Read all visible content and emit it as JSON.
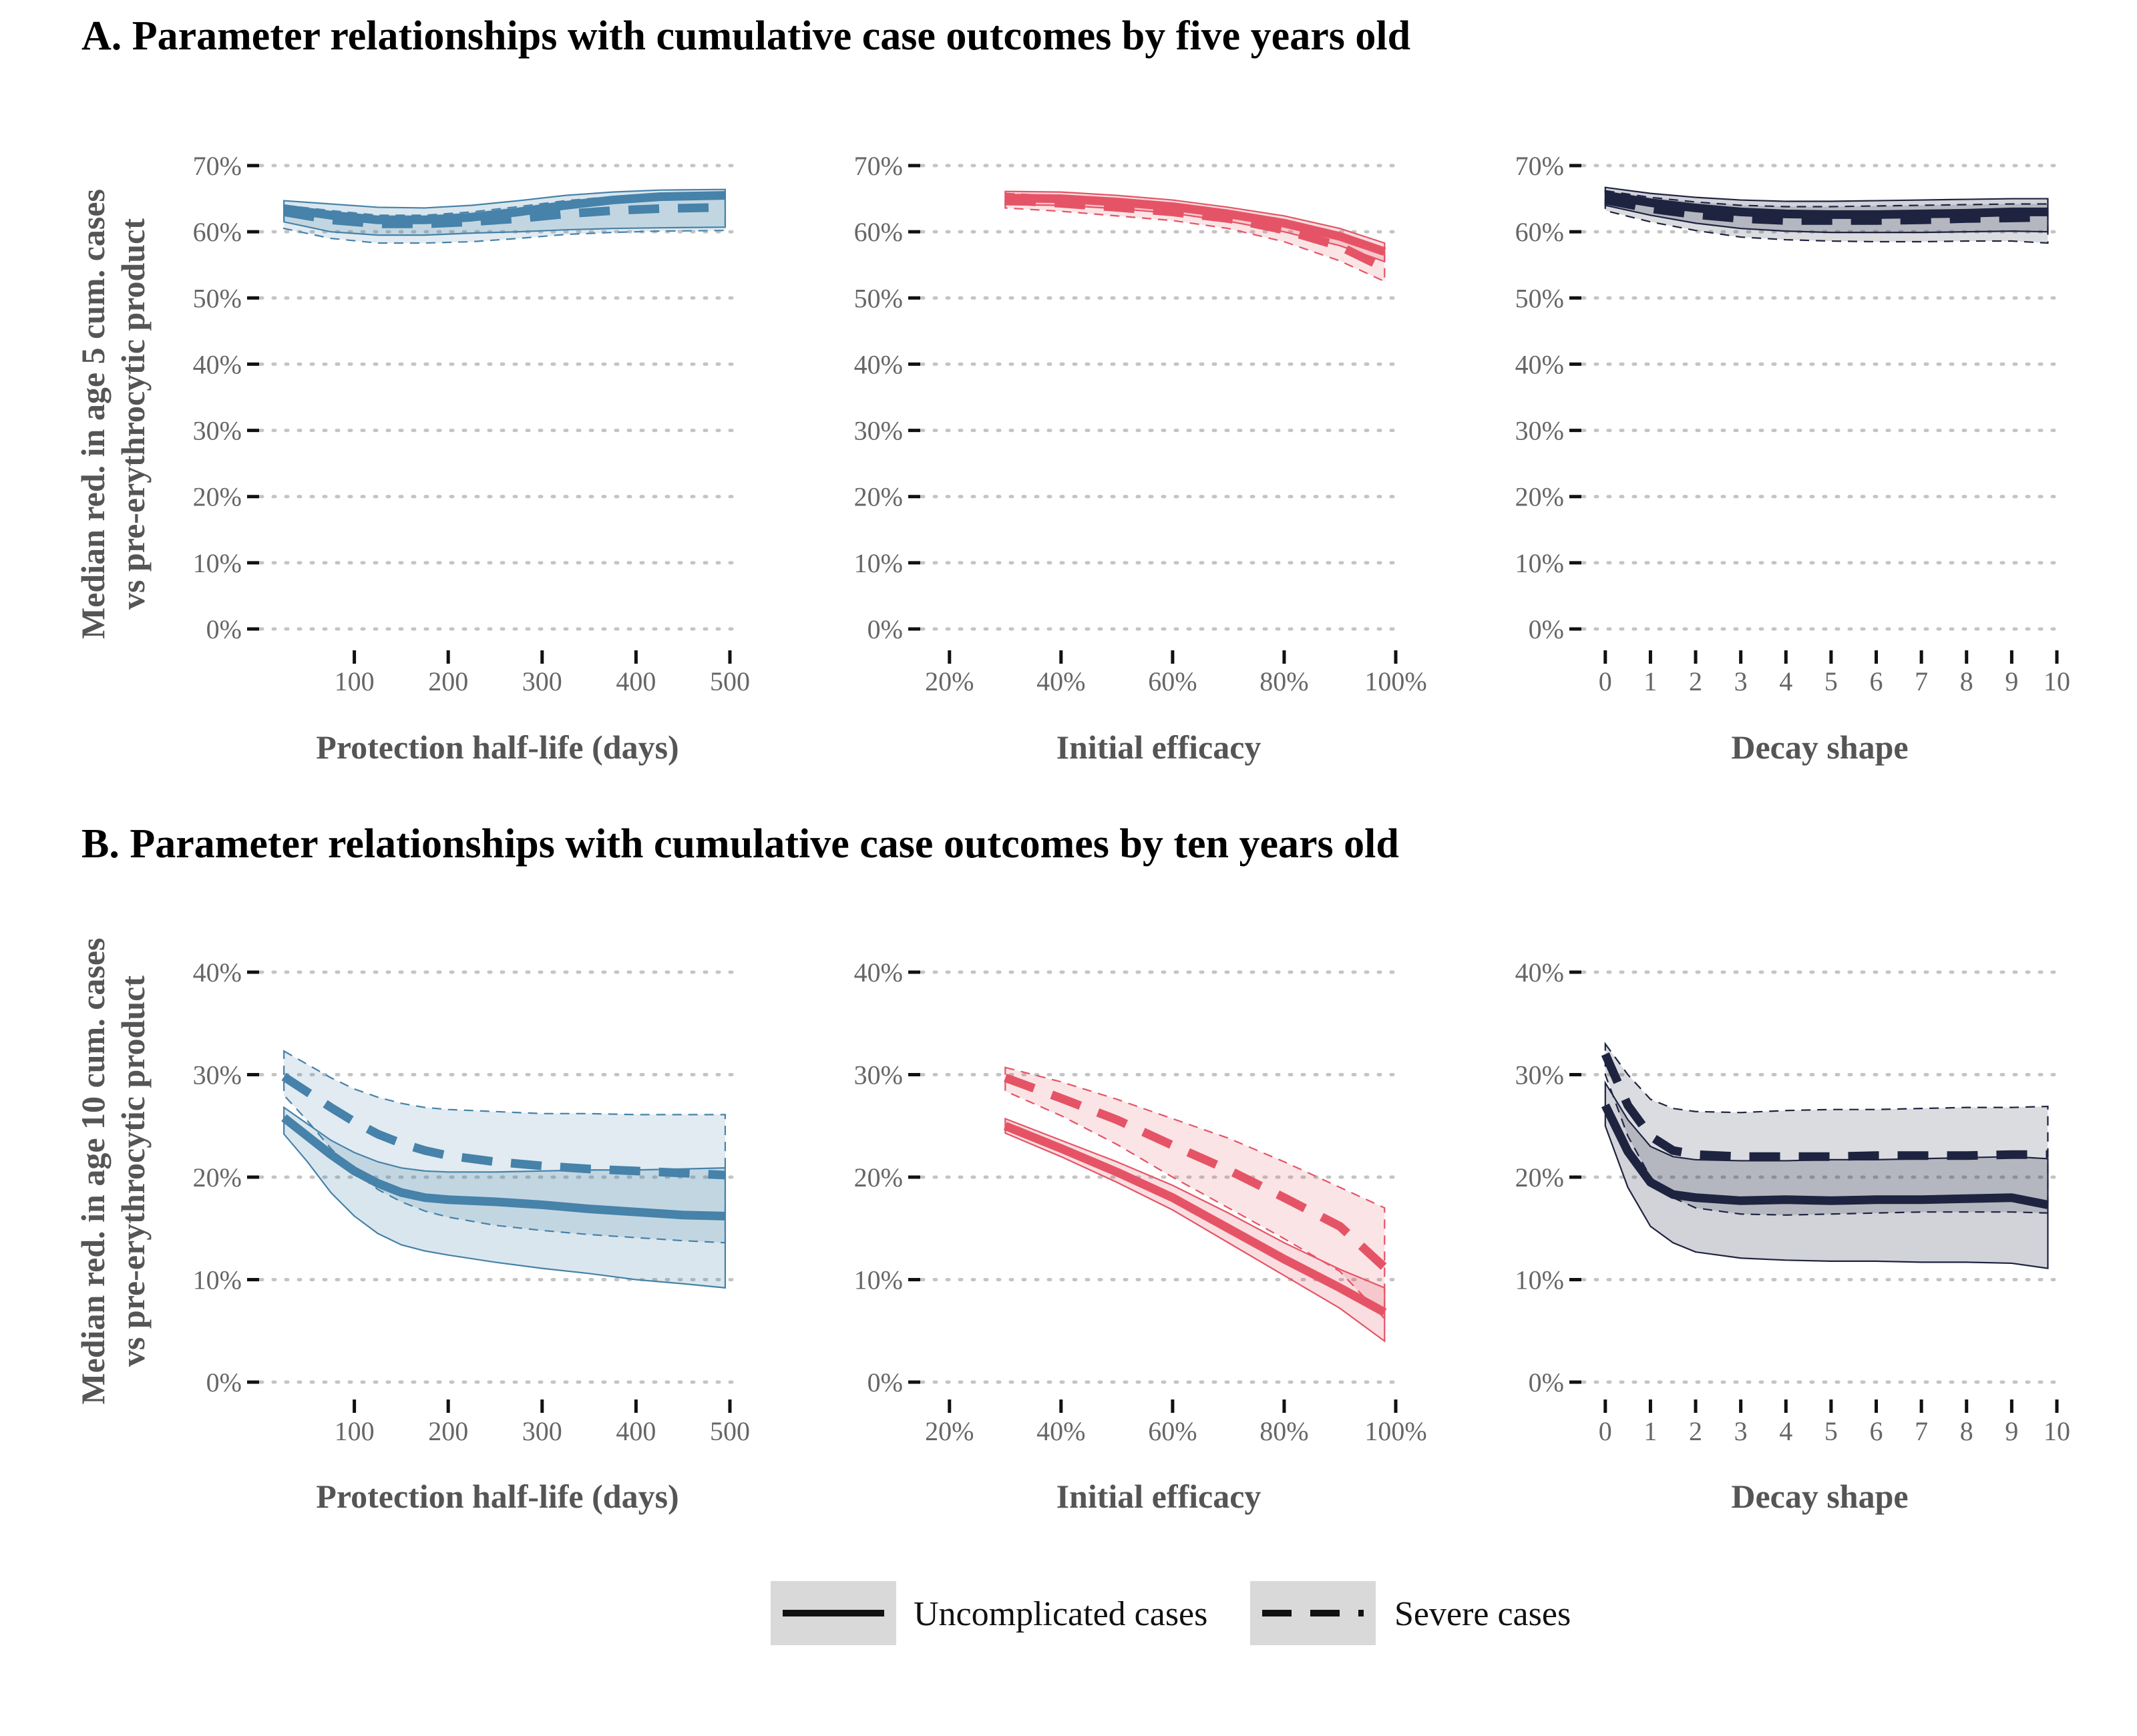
{
  "colors": {
    "blue": "#4682a9",
    "red": "#e55466",
    "navy": "#1e2340"
  },
  "sections": [
    {
      "title": "A. Parameter relationships with cumulative case outcomes by five years old",
      "ylabel_line1": "Median red. in age 5 cum. cases",
      "ylabel_line2": "vs pre-erythrocytic product"
    },
    {
      "title": "B. Parameter relationships with cumulative case outcomes by ten years old",
      "ylabel_line1": "Median red. in age 10 cum. cases",
      "ylabel_line2": "vs pre-erythrocytic product"
    }
  ],
  "legend": {
    "uncomplicated": "Uncomplicated cases",
    "severe": "Severe cases"
  },
  "chart_data": [
    {
      "type": "line",
      "panel": "A1",
      "color": "blue",
      "xlabel": "Protection half-life (days)",
      "xlim": [
        0,
        505
      ],
      "xticks": [
        100,
        200,
        300,
        400,
        500
      ],
      "xtick_labels": [
        "100",
        "200",
        "300",
        "400",
        "500"
      ],
      "ylim": [
        0,
        0.7
      ],
      "yticks": [
        0,
        0.1,
        0.2,
        0.3,
        0.4,
        0.5,
        0.6,
        0.7
      ],
      "ytick_labels": [
        "0%",
        "10%",
        "20%",
        "30%",
        "40%",
        "50%",
        "60%",
        "70%"
      ],
      "series": [
        {
          "name": "Uncomplicated cases",
          "style": "solid",
          "x": [
            25,
            75,
            125,
            175,
            225,
            275,
            325,
            375,
            425,
            495
          ],
          "y": [
            0.635,
            0.625,
            0.618,
            0.618,
            0.622,
            0.63,
            0.64,
            0.648,
            0.653,
            0.655
          ],
          "lower": [
            0.615,
            0.6,
            0.595,
            0.595,
            0.598,
            0.6,
            0.603,
            0.605,
            0.606,
            0.607
          ],
          "upper": [
            0.647,
            0.642,
            0.637,
            0.636,
            0.64,
            0.647,
            0.655,
            0.66,
            0.663,
            0.664
          ]
        },
        {
          "name": "Severe cases",
          "style": "dashed",
          "x": [
            25,
            75,
            125,
            175,
            225,
            275,
            325,
            375,
            425,
            495
          ],
          "y": [
            0.63,
            0.618,
            0.612,
            0.612,
            0.615,
            0.62,
            0.627,
            0.632,
            0.635,
            0.637
          ],
          "lower": [
            0.605,
            0.59,
            0.583,
            0.583,
            0.585,
            0.59,
            0.596,
            0.599,
            0.601,
            0.602
          ],
          "upper": [
            0.64,
            0.632,
            0.625,
            0.625,
            0.63,
            0.638,
            0.647,
            0.653,
            0.656,
            0.657
          ]
        }
      ]
    },
    {
      "type": "line",
      "panel": "A2",
      "color": "red",
      "xlabel": "Initial efficacy",
      "xlim": [
        0.15,
        1.0
      ],
      "xticks": [
        0.2,
        0.4,
        0.6,
        0.8,
        1.0
      ],
      "xtick_labels": [
        "20%",
        "40%",
        "60%",
        "80%",
        "100%"
      ],
      "ylim": [
        0,
        0.7
      ],
      "yticks": [
        0,
        0.1,
        0.2,
        0.3,
        0.4,
        0.5,
        0.6,
        0.7
      ],
      "ytick_labels": [
        "0%",
        "10%",
        "20%",
        "30%",
        "40%",
        "50%",
        "60%",
        "70%"
      ],
      "series": [
        {
          "name": "Uncomplicated cases",
          "style": "solid",
          "x": [
            0.3,
            0.4,
            0.5,
            0.6,
            0.7,
            0.8,
            0.9,
            0.98
          ],
          "y": [
            0.651,
            0.65,
            0.645,
            0.638,
            0.627,
            0.613,
            0.593,
            0.57
          ],
          "lower": [
            0.641,
            0.64,
            0.635,
            0.628,
            0.616,
            0.6,
            0.579,
            0.555
          ],
          "upper": [
            0.661,
            0.66,
            0.655,
            0.648,
            0.637,
            0.624,
            0.605,
            0.583
          ]
        },
        {
          "name": "Severe cases",
          "style": "dashed",
          "x": [
            0.3,
            0.4,
            0.5,
            0.6,
            0.7,
            0.8,
            0.9,
            0.98
          ],
          "y": [
            0.648,
            0.643,
            0.637,
            0.63,
            0.62,
            0.603,
            0.578,
            0.545
          ],
          "lower": [
            0.636,
            0.631,
            0.624,
            0.617,
            0.605,
            0.585,
            0.556,
            0.525
          ],
          "upper": [
            0.658,
            0.654,
            0.648,
            0.641,
            0.632,
            0.617,
            0.596,
            0.566
          ]
        }
      ]
    },
    {
      "type": "line",
      "panel": "A3",
      "color": "navy",
      "xlabel": "Decay shape",
      "xlim": [
        -0.5,
        10
      ],
      "xticks": [
        0,
        1,
        2,
        3,
        4,
        5,
        6,
        7,
        8,
        9,
        10
      ],
      "xtick_labels": [
        "0",
        "1",
        "2",
        "3",
        "4",
        "5",
        "6",
        "7",
        "8",
        "9",
        "10"
      ],
      "ylim": [
        0,
        0.7
      ],
      "yticks": [
        0,
        0.1,
        0.2,
        0.3,
        0.4,
        0.5,
        0.6,
        0.7
      ],
      "ytick_labels": [
        "0%",
        "10%",
        "20%",
        "30%",
        "40%",
        "50%",
        "60%",
        "70%"
      ],
      "series": [
        {
          "name": "Uncomplicated cases",
          "style": "solid",
          "x": [
            0,
            1,
            2,
            3,
            4,
            5,
            6,
            7,
            8,
            9,
            9.8
          ],
          "y": [
            0.655,
            0.644,
            0.636,
            0.63,
            0.627,
            0.626,
            0.626,
            0.627,
            0.628,
            0.63,
            0.63
          ],
          "lower": [
            0.64,
            0.625,
            0.613,
            0.605,
            0.601,
            0.599,
            0.599,
            0.599,
            0.6,
            0.601,
            0.6
          ],
          "upper": [
            0.667,
            0.658,
            0.652,
            0.648,
            0.646,
            0.646,
            0.647,
            0.648,
            0.649,
            0.65,
            0.65
          ]
        },
        {
          "name": "Severe cases",
          "style": "dashed",
          "x": [
            0,
            1,
            2,
            3,
            4,
            5,
            6,
            7,
            8,
            9,
            9.8
          ],
          "y": [
            0.648,
            0.635,
            0.626,
            0.62,
            0.617,
            0.617,
            0.617,
            0.618,
            0.62,
            0.621,
            0.622
          ],
          "lower": [
            0.632,
            0.615,
            0.602,
            0.592,
            0.588,
            0.586,
            0.585,
            0.585,
            0.586,
            0.586,
            0.583
          ],
          "upper": [
            0.662,
            0.652,
            0.645,
            0.64,
            0.638,
            0.638,
            0.639,
            0.64,
            0.641,
            0.642,
            0.642
          ]
        }
      ]
    },
    {
      "type": "line",
      "panel": "B1",
      "color": "blue",
      "xlabel": "Protection half-life (days)",
      "xlim": [
        0,
        505
      ],
      "xticks": [
        100,
        200,
        300,
        400,
        500
      ],
      "xtick_labels": [
        "100",
        "200",
        "300",
        "400",
        "500"
      ],
      "ylim": [
        0,
        0.4
      ],
      "yticks": [
        0,
        0.1,
        0.2,
        0.3,
        0.4
      ],
      "ytick_labels": [
        "0%",
        "10%",
        "20%",
        "30%",
        "40%"
      ],
      "series": [
        {
          "name": "Uncomplicated cases",
          "style": "solid",
          "x": [
            25,
            50,
            75,
            100,
            125,
            150,
            175,
            200,
            250,
            300,
            350,
            400,
            450,
            495
          ],
          "y": [
            0.258,
            0.24,
            0.222,
            0.206,
            0.194,
            0.185,
            0.18,
            0.178,
            0.176,
            0.173,
            0.169,
            0.166,
            0.163,
            0.162
          ],
          "lower": [
            0.242,
            0.215,
            0.185,
            0.162,
            0.145,
            0.134,
            0.128,
            0.124,
            0.117,
            0.111,
            0.106,
            0.1,
            0.096,
            0.092
          ],
          "upper": [
            0.268,
            0.252,
            0.236,
            0.224,
            0.215,
            0.209,
            0.206,
            0.205,
            0.205,
            0.206,
            0.207,
            0.207,
            0.208,
            0.209
          ]
        },
        {
          "name": "Severe cases",
          "style": "dashed",
          "x": [
            25,
            50,
            75,
            100,
            125,
            150,
            175,
            200,
            250,
            300,
            350,
            400,
            450,
            495
          ],
          "y": [
            0.298,
            0.283,
            0.268,
            0.254,
            0.242,
            0.233,
            0.226,
            0.221,
            0.215,
            0.211,
            0.208,
            0.206,
            0.204,
            0.202
          ],
          "lower": [
            0.28,
            0.255,
            0.228,
            0.205,
            0.188,
            0.176,
            0.167,
            0.161,
            0.153,
            0.148,
            0.144,
            0.141,
            0.138,
            0.136
          ],
          "upper": [
            0.323,
            0.31,
            0.297,
            0.286,
            0.278,
            0.272,
            0.268,
            0.266,
            0.264,
            0.262,
            0.262,
            0.261,
            0.261,
            0.261
          ]
        }
      ]
    },
    {
      "type": "line",
      "panel": "B2",
      "color": "red",
      "xlabel": "Initial efficacy",
      "xlim": [
        0.15,
        1.0
      ],
      "xticks": [
        0.2,
        0.4,
        0.6,
        0.8,
        1.0
      ],
      "xtick_labels": [
        "20%",
        "40%",
        "60%",
        "80%",
        "100%"
      ],
      "ylim": [
        0,
        0.4
      ],
      "yticks": [
        0,
        0.1,
        0.2,
        0.3,
        0.4
      ],
      "ytick_labels": [
        "0%",
        "10%",
        "20%",
        "30%",
        "40%"
      ],
      "series": [
        {
          "name": "Uncomplicated cases",
          "style": "solid",
          "x": [
            0.3,
            0.4,
            0.5,
            0.6,
            0.7,
            0.8,
            0.9,
            0.98
          ],
          "y": [
            0.25,
            0.228,
            0.205,
            0.18,
            0.15,
            0.12,
            0.092,
            0.068
          ],
          "lower": [
            0.243,
            0.22,
            0.195,
            0.168,
            0.136,
            0.104,
            0.072,
            0.04
          ],
          "upper": [
            0.257,
            0.236,
            0.215,
            0.192,
            0.165,
            0.136,
            0.11,
            0.092
          ]
        },
        {
          "name": "Severe cases",
          "style": "dashed",
          "x": [
            0.3,
            0.4,
            0.5,
            0.6,
            0.7,
            0.8,
            0.9,
            0.98
          ],
          "y": [
            0.297,
            0.277,
            0.256,
            0.231,
            0.207,
            0.18,
            0.152,
            0.112
          ],
          "lower": [
            0.284,
            0.26,
            0.232,
            0.2,
            0.17,
            0.14,
            0.108,
            0.062
          ],
          "upper": [
            0.307,
            0.293,
            0.276,
            0.257,
            0.238,
            0.215,
            0.19,
            0.17
          ]
        }
      ]
    },
    {
      "type": "line",
      "panel": "B3",
      "color": "navy",
      "xlabel": "Decay shape",
      "xlim": [
        -0.5,
        10
      ],
      "xticks": [
        0,
        1,
        2,
        3,
        4,
        5,
        6,
        7,
        8,
        9,
        10
      ],
      "xtick_labels": [
        "0",
        "1",
        "2",
        "3",
        "4",
        "5",
        "6",
        "7",
        "8",
        "9",
        "10"
      ],
      "ylim": [
        0,
        0.4
      ],
      "yticks": [
        0,
        0.1,
        0.2,
        0.3,
        0.4
      ],
      "ytick_labels": [
        "0%",
        "10%",
        "20%",
        "30%",
        "40%"
      ],
      "series": [
        {
          "name": "Uncomplicated cases",
          "style": "solid",
          "x": [
            0,
            0.5,
            1,
            1.5,
            2,
            3,
            4,
            5,
            6,
            7,
            8,
            9,
            9.8
          ],
          "y": [
            0.27,
            0.225,
            0.195,
            0.183,
            0.18,
            0.177,
            0.178,
            0.177,
            0.178,
            0.178,
            0.179,
            0.18,
            0.173
          ],
          "lower": [
            0.25,
            0.19,
            0.152,
            0.136,
            0.127,
            0.121,
            0.119,
            0.118,
            0.118,
            0.117,
            0.117,
            0.116,
            0.111
          ],
          "upper": [
            0.292,
            0.256,
            0.23,
            0.22,
            0.217,
            0.216,
            0.216,
            0.217,
            0.217,
            0.218,
            0.219,
            0.22,
            0.218
          ]
        },
        {
          "name": "Severe cases",
          "style": "dashed",
          "x": [
            0,
            0.5,
            1,
            1.5,
            2,
            3,
            4,
            5,
            6,
            7,
            8,
            9,
            9.8
          ],
          "y": [
            0.32,
            0.27,
            0.24,
            0.226,
            0.222,
            0.22,
            0.22,
            0.22,
            0.221,
            0.221,
            0.221,
            0.222,
            0.222
          ],
          "lower": [
            0.3,
            0.24,
            0.2,
            0.18,
            0.17,
            0.164,
            0.163,
            0.164,
            0.165,
            0.166,
            0.166,
            0.166,
            0.165
          ],
          "upper": [
            0.33,
            0.3,
            0.276,
            0.267,
            0.264,
            0.263,
            0.265,
            0.266,
            0.266,
            0.267,
            0.268,
            0.268,
            0.269
          ]
        }
      ]
    }
  ]
}
